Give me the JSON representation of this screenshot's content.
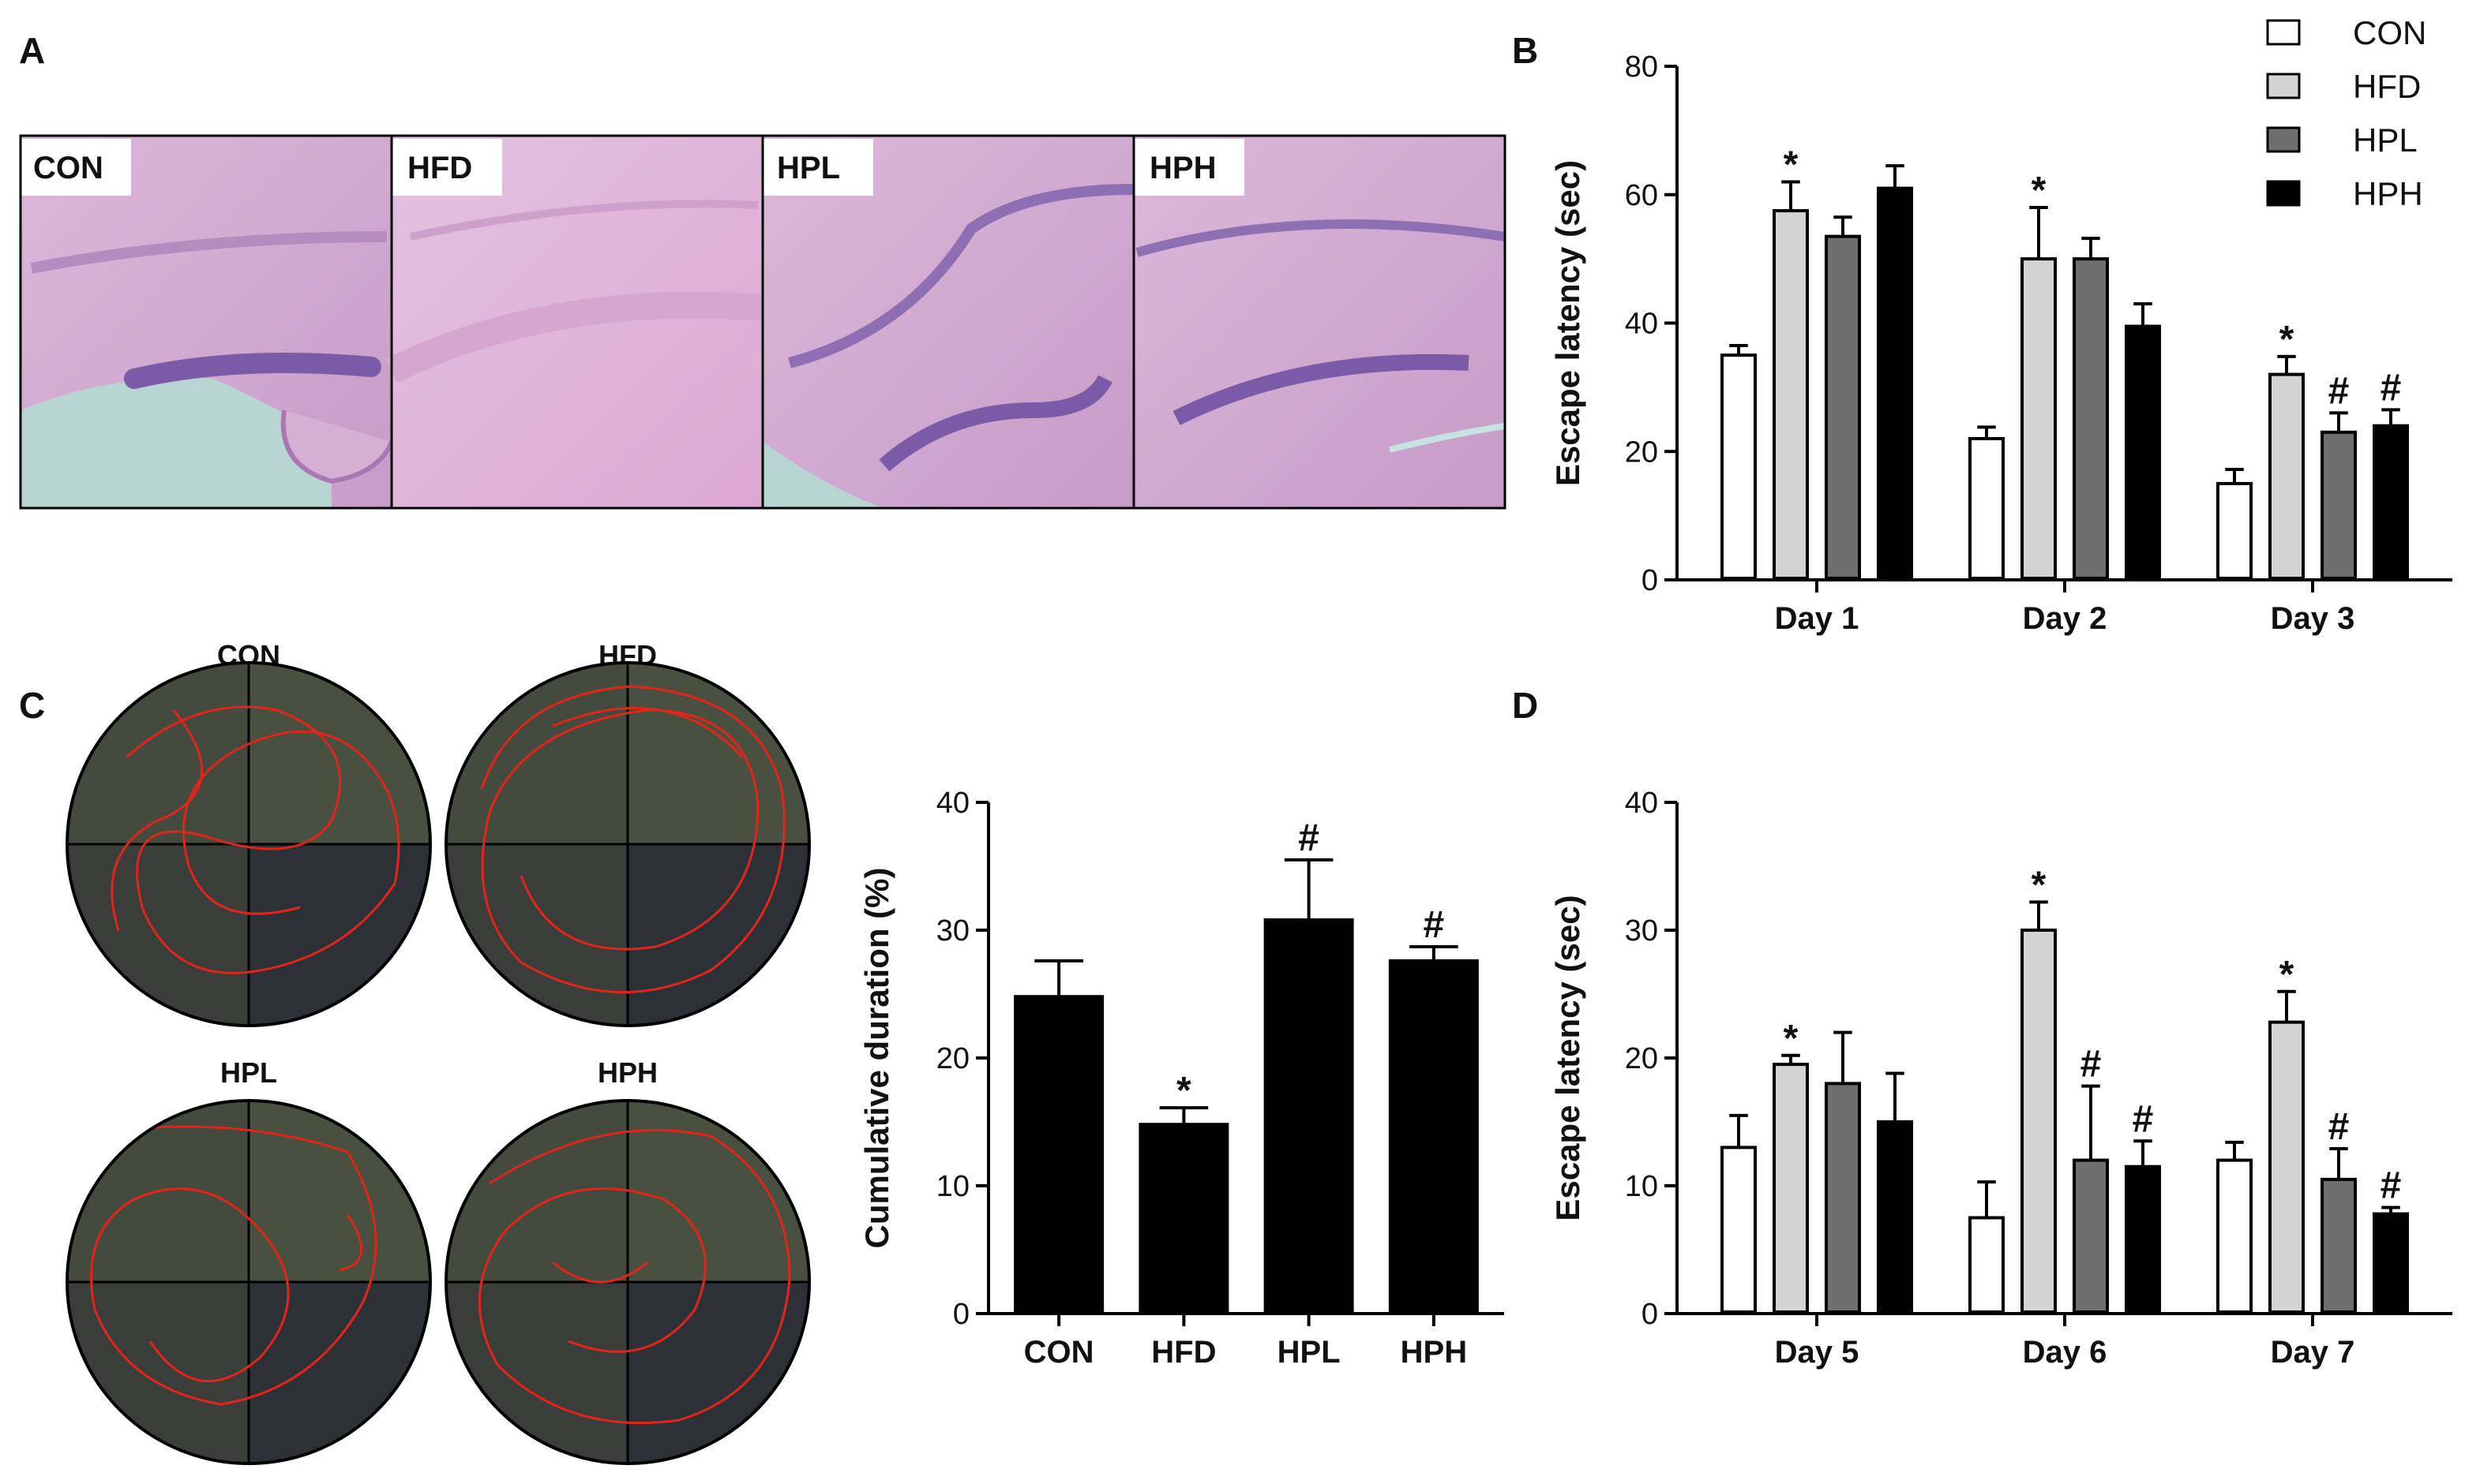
{
  "panels": {
    "A": {
      "letter": "A",
      "images": [
        {
          "label": "CON"
        },
        {
          "label": "HFD"
        },
        {
          "label": "HPL"
        },
        {
          "label": "HPH"
        }
      ]
    },
    "B": {
      "letter": "B"
    },
    "C": {
      "letter": "C",
      "mazes": [
        {
          "label": "CON"
        },
        {
          "label": "HFD"
        },
        {
          "label": "HPL"
        },
        {
          "label": "HPH"
        }
      ]
    },
    "D": {
      "letter": "D"
    }
  },
  "legend": [
    {
      "name": "CON",
      "color": "#ffffff"
    },
    {
      "name": "HFD",
      "color": "#d3d3d3"
    },
    {
      "name": "HPL",
      "color": "#6e6e6e"
    },
    {
      "name": "HPH",
      "color": "#000000"
    }
  ],
  "chart_data": [
    {
      "id": "B",
      "type": "bar",
      "categories": [
        "Day 1",
        "Day 2",
        "Day 3"
      ],
      "series": [
        {
          "name": "CON",
          "color": "#ffffff",
          "values": [
            35,
            22,
            15
          ],
          "errors": [
            1.5,
            1.8,
            2.2
          ],
          "markers": [
            "",
            "",
            ""
          ]
        },
        {
          "name": "HFD",
          "color": "#d3d3d3",
          "values": [
            57.5,
            50,
            32
          ],
          "errors": [
            4.5,
            8,
            2.8
          ],
          "markers": [
            "*",
            "*",
            "*"
          ]
        },
        {
          "name": "HPL",
          "color": "#6e6e6e",
          "values": [
            53.5,
            50,
            23
          ],
          "errors": [
            3,
            3.2,
            3
          ],
          "markers": [
            "",
            "",
            "#"
          ]
        },
        {
          "name": "HPH",
          "color": "#000000",
          "values": [
            61,
            39.5,
            24
          ],
          "errors": [
            3.5,
            3.5,
            2.5
          ],
          "markers": [
            "",
            "",
            "#"
          ]
        }
      ],
      "ylabel": "Escape latency (sec)",
      "ylim": [
        0,
        80
      ],
      "yticks": [
        0,
        20,
        40,
        60,
        80
      ],
      "legend": "top-right",
      "grid": false
    },
    {
      "id": "C",
      "type": "bar",
      "categories": [
        "CON",
        "HFD",
        "HPL",
        "HPH"
      ],
      "values": [
        24.8,
        14.8,
        30.8,
        27.6
      ],
      "errors": [
        2.8,
        1.3,
        4.7,
        1.1
      ],
      "markers": [
        "",
        "*",
        "#",
        "#"
      ],
      "color": "#000000",
      "ylabel": "Cumulative duration (%)",
      "ylim": [
        0,
        40
      ],
      "yticks": [
        0,
        10,
        20,
        30,
        40
      ],
      "grid": false
    },
    {
      "id": "D",
      "type": "bar",
      "categories": [
        "Day 5",
        "Day 6",
        "Day 7"
      ],
      "series": [
        {
          "name": "CON",
          "color": "#ffffff",
          "values": [
            13,
            7.5,
            12
          ],
          "errors": [
            2.5,
            2.8,
            1.4
          ],
          "markers": [
            "",
            "",
            ""
          ]
        },
        {
          "name": "HFD",
          "color": "#d3d3d3",
          "values": [
            19.5,
            30,
            22.8
          ],
          "errors": [
            0.7,
            2.2,
            2.4
          ],
          "markers": [
            "*",
            "*",
            "*"
          ]
        },
        {
          "name": "HPL",
          "color": "#6e6e6e",
          "values": [
            18,
            12,
            10.5
          ],
          "errors": [
            4,
            5.8,
            2.4
          ],
          "markers": [
            "",
            "#",
            "#"
          ]
        },
        {
          "name": "HPH",
          "color": "#000000",
          "values": [
            15,
            11.5,
            7.8
          ],
          "errors": [
            3.8,
            2,
            0.5
          ],
          "markers": [
            "",
            "#",
            "#"
          ]
        }
      ],
      "ylabel": "Escape latency (sec)",
      "ylim": [
        0,
        40
      ],
      "yticks": [
        0,
        10,
        20,
        30,
        40
      ],
      "grid": false
    }
  ]
}
